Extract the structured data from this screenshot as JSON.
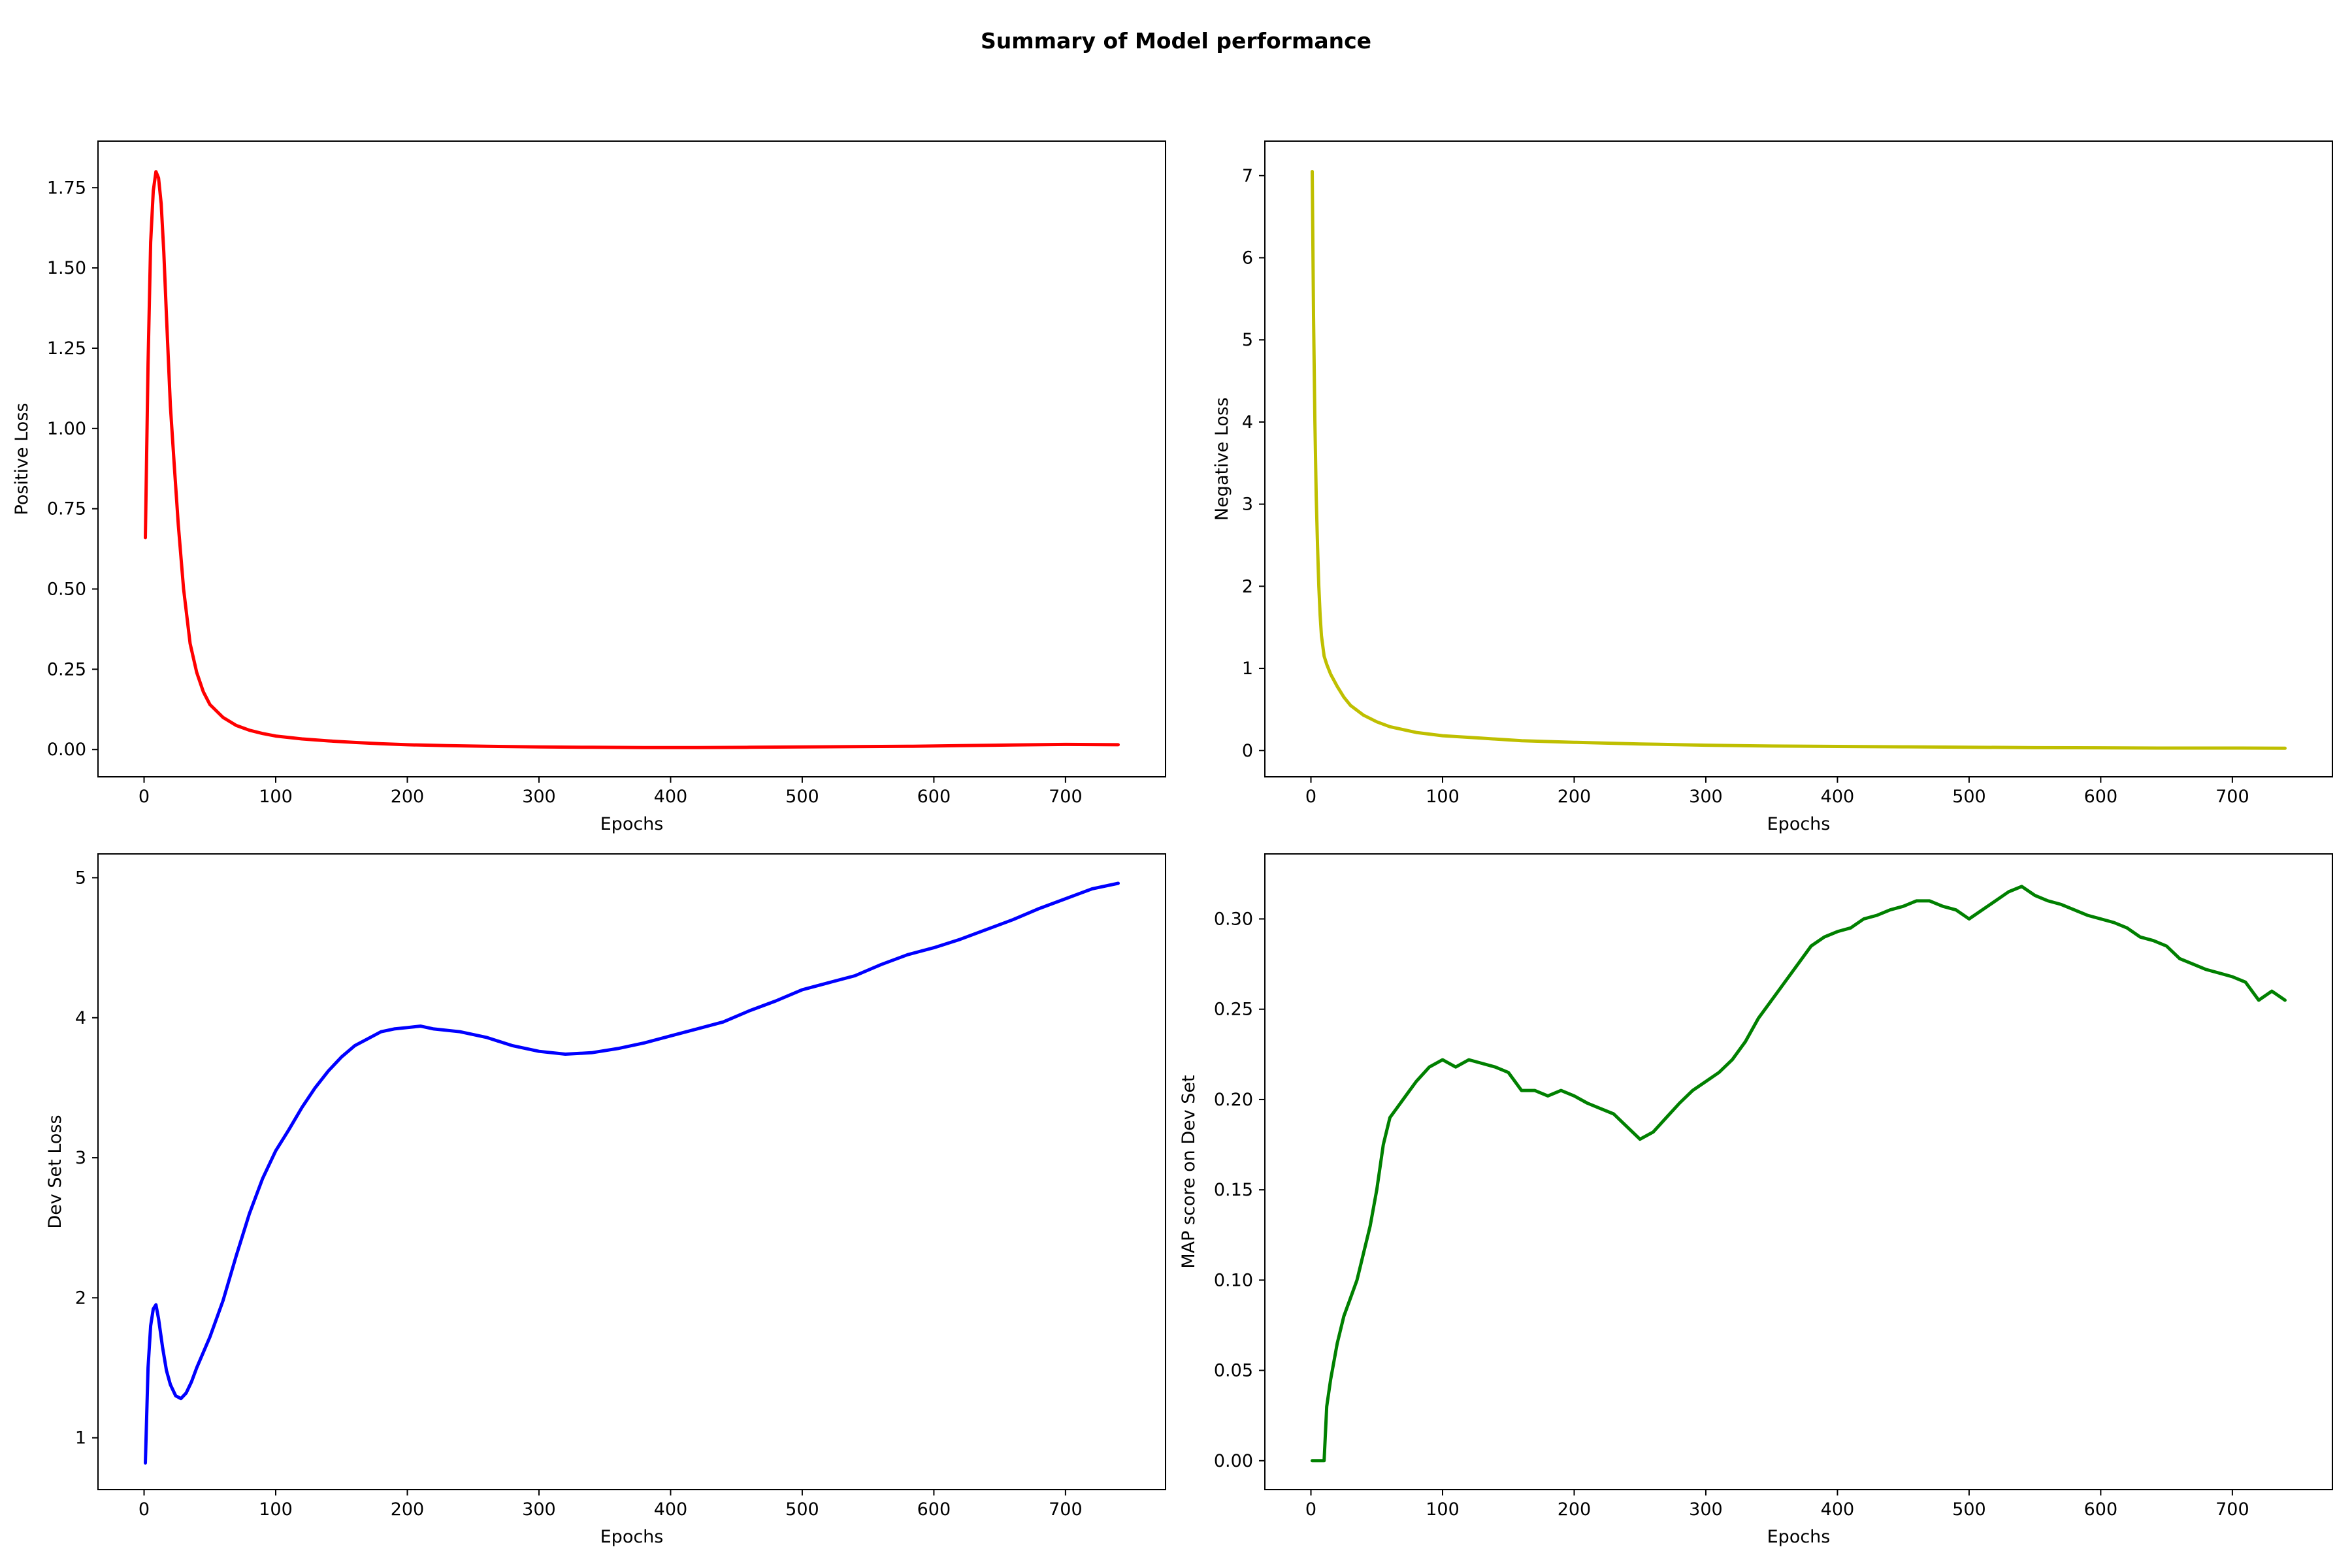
{
  "figure": {
    "title": "Summary of Model performance"
  },
  "chart_data": [
    {
      "type": "line",
      "title": "",
      "xlabel": "Epochs",
      "ylabel": "Positive Loss",
      "color": "#ff0000",
      "xlim": [
        -35,
        776
      ],
      "ylim": [
        -0.085,
        1.895
      ],
      "xticks": [
        0,
        100,
        200,
        300,
        400,
        500,
        600,
        700
      ],
      "yticks": [
        0.0,
        0.25,
        0.5,
        0.75,
        1.0,
        1.25,
        1.5,
        1.75
      ],
      "ytick_labels": [
        "0.00",
        "0.25",
        "0.50",
        "0.75",
        "1.00",
        "1.25",
        "1.50",
        "1.75"
      ],
      "grid": false,
      "x": [
        1,
        3,
        5,
        7,
        9,
        11,
        13,
        15,
        17,
        20,
        23,
        26,
        30,
        35,
        40,
        45,
        50,
        60,
        70,
        80,
        90,
        100,
        120,
        140,
        160,
        180,
        200,
        230,
        260,
        300,
        340,
        380,
        420,
        460,
        500,
        540,
        580,
        620,
        660,
        700,
        740
      ],
      "y": [
        0.66,
        1.2,
        1.58,
        1.74,
        1.8,
        1.78,
        1.7,
        1.55,
        1.35,
        1.07,
        0.88,
        0.7,
        0.5,
        0.33,
        0.24,
        0.18,
        0.14,
        0.1,
        0.075,
        0.06,
        0.05,
        0.042,
        0.033,
        0.027,
        0.022,
        0.018,
        0.015,
        0.012,
        0.01,
        0.008,
        0.007,
        0.006,
        0.006,
        0.007,
        0.008,
        0.009,
        0.01,
        0.012,
        0.014,
        0.016,
        0.015
      ]
    },
    {
      "type": "line",
      "title": "",
      "xlabel": "Epochs",
      "ylabel": "Negative Loss",
      "color": "#bfbf00",
      "xlim": [
        -35,
        776
      ],
      "ylim": [
        -0.32,
        7.42
      ],
      "xticks": [
        0,
        100,
        200,
        300,
        400,
        500,
        600,
        700
      ],
      "yticks": [
        0,
        1,
        2,
        3,
        4,
        5,
        6,
        7
      ],
      "ytick_labels": [
        "0",
        "1",
        "2",
        "3",
        "4",
        "5",
        "6",
        "7"
      ],
      "grid": false,
      "x": [
        1,
        2,
        3,
        4,
        5,
        6,
        7,
        8,
        10,
        12,
        15,
        20,
        25,
        30,
        40,
        50,
        60,
        80,
        100,
        130,
        160,
        200,
        250,
        300,
        350,
        400,
        450,
        500,
        550,
        600,
        650,
        700,
        740
      ],
      "y": [
        7.05,
        5.3,
        4.0,
        3.1,
        2.5,
        2.0,
        1.65,
        1.4,
        1.15,
        1.05,
        0.93,
        0.78,
        0.65,
        0.55,
        0.43,
        0.35,
        0.29,
        0.22,
        0.18,
        0.15,
        0.12,
        0.1,
        0.08,
        0.065,
        0.055,
        0.05,
        0.045,
        0.04,
        0.035,
        0.033,
        0.03,
        0.03,
        0.028
      ]
    },
    {
      "type": "line",
      "title": "",
      "xlabel": "Epochs",
      "ylabel": "Dev Set Loss",
      "color": "#0000ff",
      "xlim": [
        -35,
        776
      ],
      "ylim": [
        0.63,
        5.17
      ],
      "xticks": [
        0,
        100,
        200,
        300,
        400,
        500,
        600,
        700
      ],
      "yticks": [
        1,
        2,
        3,
        4,
        5
      ],
      "ytick_labels": [
        "1",
        "2",
        "3",
        "4",
        "5"
      ],
      "grid": false,
      "x": [
        1,
        3,
        5,
        7,
        9,
        11,
        14,
        17,
        20,
        24,
        28,
        32,
        36,
        40,
        50,
        60,
        70,
        80,
        90,
        100,
        110,
        120,
        130,
        140,
        150,
        160,
        170,
        180,
        190,
        200,
        210,
        220,
        240,
        260,
        280,
        300,
        320,
        340,
        360,
        380,
        400,
        420,
        440,
        460,
        480,
        500,
        520,
        540,
        560,
        580,
        600,
        620,
        640,
        660,
        680,
        700,
        720,
        740
      ],
      "y": [
        0.82,
        1.5,
        1.8,
        1.92,
        1.95,
        1.85,
        1.65,
        1.48,
        1.38,
        1.3,
        1.28,
        1.32,
        1.4,
        1.5,
        1.72,
        1.98,
        2.3,
        2.6,
        2.85,
        3.05,
        3.2,
        3.36,
        3.5,
        3.62,
        3.72,
        3.8,
        3.85,
        3.9,
        3.92,
        3.93,
        3.94,
        3.92,
        3.9,
        3.86,
        3.8,
        3.76,
        3.74,
        3.75,
        3.78,
        3.82,
        3.87,
        3.92,
        3.97,
        4.05,
        4.12,
        4.2,
        4.25,
        4.3,
        4.38,
        4.45,
        4.5,
        4.56,
        4.63,
        4.7,
        4.78,
        4.85,
        4.92,
        4.96
      ]
    },
    {
      "type": "line",
      "title": "",
      "xlabel": "Epochs",
      "ylabel": "MAP score on Dev Set",
      "color": "#008000",
      "xlim": [
        -35,
        776
      ],
      "ylim": [
        -0.016,
        0.336
      ],
      "xticks": [
        0,
        100,
        200,
        300,
        400,
        500,
        600,
        700
      ],
      "yticks": [
        0.0,
        0.05,
        0.1,
        0.15,
        0.2,
        0.25,
        0.3
      ],
      "ytick_labels": [
        "0.00",
        "0.05",
        "0.10",
        "0.15",
        "0.20",
        "0.25",
        "0.30"
      ],
      "grid": false,
      "x": [
        1,
        5,
        10,
        12,
        15,
        20,
        25,
        30,
        35,
        40,
        45,
        50,
        55,
        60,
        65,
        70,
        75,
        80,
        90,
        100,
        110,
        120,
        130,
        140,
        150,
        160,
        170,
        180,
        190,
        200,
        210,
        220,
        230,
        240,
        250,
        260,
        270,
        280,
        290,
        300,
        310,
        320,
        330,
        340,
        350,
        360,
        370,
        380,
        390,
        400,
        410,
        420,
        430,
        440,
        450,
        460,
        470,
        480,
        490,
        500,
        510,
        520,
        530,
        540,
        550,
        560,
        570,
        580,
        590,
        600,
        610,
        620,
        630,
        640,
        650,
        660,
        670,
        680,
        690,
        700,
        710,
        720,
        730,
        740
      ],
      "y": [
        0.0,
        0.0,
        0.0,
        0.03,
        0.045,
        0.065,
        0.08,
        0.09,
        0.1,
        0.115,
        0.13,
        0.15,
        0.175,
        0.19,
        0.195,
        0.2,
        0.205,
        0.21,
        0.218,
        0.222,
        0.218,
        0.222,
        0.22,
        0.218,
        0.215,
        0.205,
        0.205,
        0.202,
        0.205,
        0.202,
        0.198,
        0.195,
        0.192,
        0.185,
        0.178,
        0.182,
        0.19,
        0.198,
        0.205,
        0.21,
        0.215,
        0.222,
        0.232,
        0.245,
        0.255,
        0.265,
        0.275,
        0.285,
        0.29,
        0.293,
        0.295,
        0.3,
        0.302,
        0.305,
        0.307,
        0.31,
        0.31,
        0.307,
        0.305,
        0.3,
        0.305,
        0.31,
        0.315,
        0.318,
        0.313,
        0.31,
        0.308,
        0.305,
        0.302,
        0.3,
        0.298,
        0.295,
        0.29,
        0.288,
        0.285,
        0.278,
        0.275,
        0.272,
        0.27,
        0.268,
        0.265,
        0.255,
        0.26,
        0.255
      ]
    }
  ]
}
